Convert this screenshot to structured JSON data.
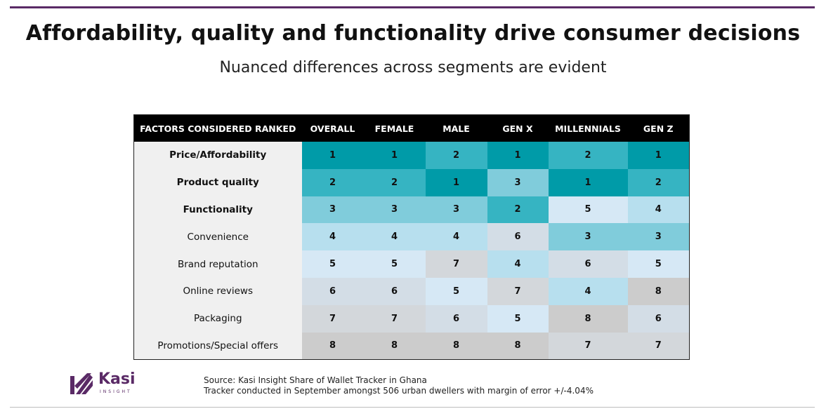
{
  "title": "Affordability, quality and functionality drive consumer decisions",
  "subtitle": "Nuanced differences across segments are evident",
  "table": {
    "headers": [
      "FACTORS CONSIDERED RANKED",
      "OVERALL",
      "FEMALE",
      "MALE",
      "GEN X",
      "MILLENNIALS",
      "GEN Z"
    ],
    "rows": [
      {
        "factor": "Price/Affordability",
        "bold": true,
        "ranks": [
          1,
          1,
          2,
          1,
          2,
          1
        ]
      },
      {
        "factor": "Product quality",
        "bold": true,
        "ranks": [
          2,
          2,
          1,
          3,
          1,
          2
        ]
      },
      {
        "factor": "Functionality",
        "bold": true,
        "ranks": [
          3,
          3,
          3,
          2,
          5,
          4
        ]
      },
      {
        "factor": "Convenience",
        "bold": false,
        "ranks": [
          4,
          4,
          4,
          6,
          3,
          3
        ]
      },
      {
        "factor": "Brand reputation",
        "bold": false,
        "ranks": [
          5,
          5,
          7,
          4,
          6,
          5
        ]
      },
      {
        "factor": "Online reviews",
        "bold": false,
        "ranks": [
          6,
          6,
          5,
          7,
          4,
          8
        ]
      },
      {
        "factor": "Packaging",
        "bold": false,
        "ranks": [
          7,
          7,
          6,
          5,
          8,
          6
        ]
      },
      {
        "factor": "Promotions/Special offers",
        "bold": false,
        "ranks": [
          8,
          8,
          8,
          8,
          7,
          7
        ]
      }
    ],
    "rank_colors": {
      "1": "#009ba8",
      "2": "#36b4c2",
      "3": "#80ccdb",
      "4": "#b7dfee",
      "5": "#d6e8f5",
      "6": "#d3dde6",
      "7": "#d3d7db",
      "8": "#cccccc"
    }
  },
  "logo": {
    "name": "Kasi",
    "tagline": "INSIGHT",
    "icon": "kasi-logo-icon",
    "color": "#5a2a66"
  },
  "source": {
    "line1": "Source: Kasi Insight Share of Wallet Tracker in Ghana",
    "line2": "Tracker conducted in September amongst 506 urban dwellers with margin of error +/-4.04%"
  },
  "colors": {
    "accent": "#5a2a66",
    "header_bg": "#000000",
    "factor_bg": "#f0f0f0"
  }
}
